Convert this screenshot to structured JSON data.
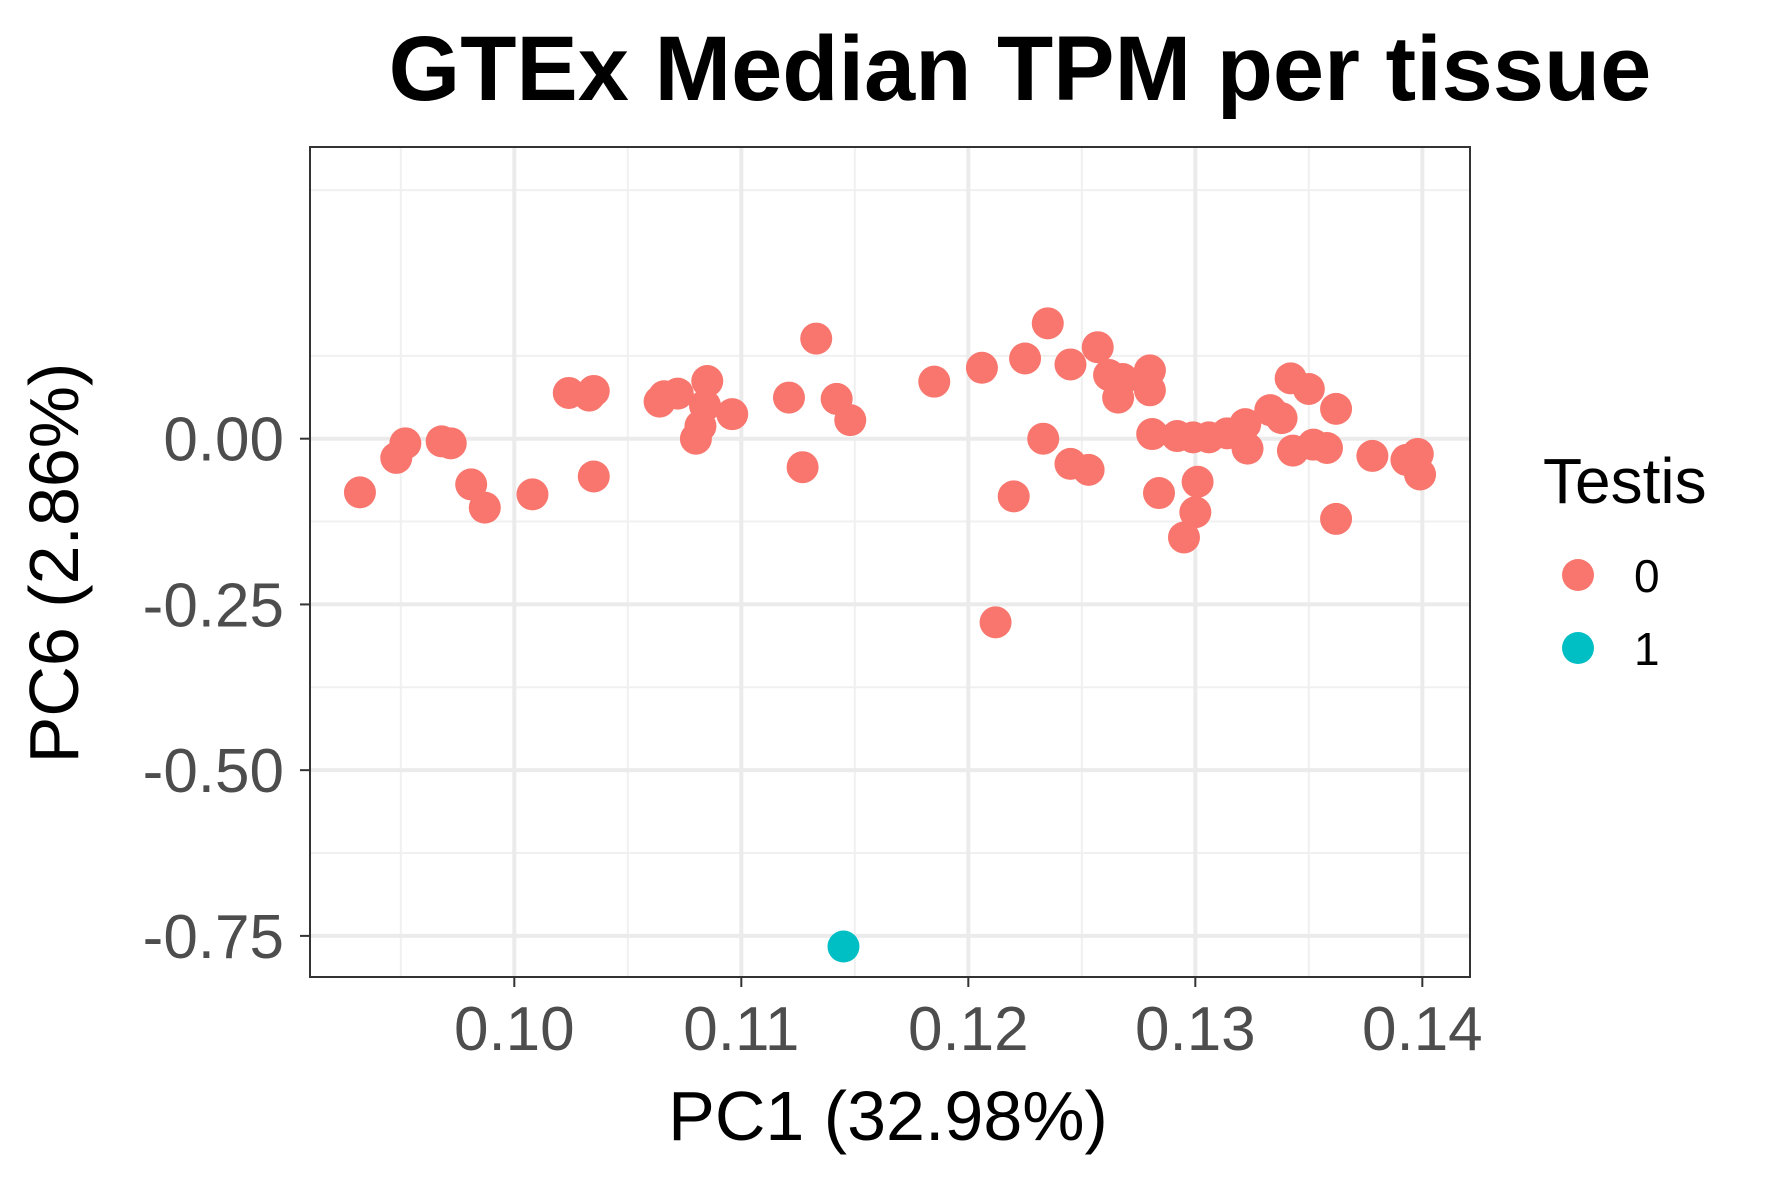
{
  "chart_data": {
    "type": "scatter",
    "title": "GTEx Median TPM per tissue",
    "xlabel": "PC1 (32.98%)",
    "ylabel": "PC6 (2.86%)",
    "xlim": [
      0.091,
      0.1421
    ],
    "ylim": [
      -0.812,
      0.44
    ],
    "x_ticks": [
      0.1,
      0.11,
      0.12,
      0.13,
      0.14
    ],
    "x_tick_labels": [
      "0.10",
      "0.11",
      "0.12",
      "0.13",
      "0.14"
    ],
    "y_ticks": [
      0.0,
      -0.25,
      -0.5,
      -0.75
    ],
    "y_tick_labels": [
      "0.00",
      "-0.25",
      "-0.50",
      "-0.75"
    ],
    "grid": true,
    "legend": {
      "title": "Testis",
      "position": "right",
      "entries": [
        {
          "label": "0",
          "color": "#f8766d"
        },
        {
          "label": "1",
          "color": "#00bfc4"
        }
      ]
    },
    "series": [
      {
        "group": "0",
        "color": "#f8766d",
        "points": [
          [
            0.0932,
            -0.081
          ],
          [
            0.0948,
            -0.029
          ],
          [
            0.0952,
            -0.007
          ],
          [
            0.0968,
            -0.004
          ],
          [
            0.0972,
            -0.007
          ],
          [
            0.0981,
            -0.069
          ],
          [
            0.0987,
            -0.104
          ],
          [
            0.1008,
            -0.084
          ],
          [
            0.1024,
            0.069
          ],
          [
            0.1033,
            0.065
          ],
          [
            0.1035,
            0.072
          ],
          [
            0.1035,
            -0.057
          ],
          [
            0.1064,
            0.056
          ],
          [
            0.1066,
            0.064
          ],
          [
            0.1072,
            0.068
          ],
          [
            0.108,
            0.0
          ],
          [
            0.1082,
            0.019
          ],
          [
            0.1084,
            0.05
          ],
          [
            0.1085,
            0.087
          ],
          [
            0.1096,
            0.037
          ],
          [
            0.1121,
            0.062
          ],
          [
            0.1127,
            -0.043
          ],
          [
            0.1133,
            0.151
          ],
          [
            0.1142,
            0.06
          ],
          [
            0.1148,
            0.028
          ],
          [
            0.1185,
            0.086
          ],
          [
            0.1206,
            0.107
          ],
          [
            0.1212,
            -0.277
          ],
          [
            0.122,
            -0.087
          ],
          [
            0.1225,
            0.121
          ],
          [
            0.1233,
            0.0
          ],
          [
            0.1235,
            0.174
          ],
          [
            0.1245,
            0.112
          ],
          [
            0.1245,
            -0.038
          ],
          [
            0.1253,
            -0.047
          ],
          [
            0.1257,
            0.138
          ],
          [
            0.1262,
            0.096
          ],
          [
            0.1266,
            0.062
          ],
          [
            0.1268,
            0.09
          ],
          [
            0.128,
            0.103
          ],
          [
            0.128,
            0.073
          ],
          [
            0.1281,
            0.007
          ],
          [
            0.1284,
            -0.082
          ],
          [
            0.1292,
            0.004
          ],
          [
            0.1295,
            -0.149
          ],
          [
            0.1299,
            0.002
          ],
          [
            0.13,
            -0.111
          ],
          [
            0.1301,
            -0.065
          ],
          [
            0.1306,
            0.002
          ],
          [
            0.1314,
            0.008
          ],
          [
            0.1322,
            0.022
          ],
          [
            0.1323,
            -0.015
          ],
          [
            0.1333,
            0.043
          ],
          [
            0.1338,
            0.031
          ],
          [
            0.1342,
            0.091
          ],
          [
            0.1343,
            -0.018
          ],
          [
            0.135,
            0.075
          ],
          [
            0.1352,
            -0.009
          ],
          [
            0.1358,
            -0.014
          ],
          [
            0.1362,
            0.045
          ],
          [
            0.1362,
            -0.121
          ],
          [
            0.1378,
            -0.026
          ],
          [
            0.1393,
            -0.032
          ],
          [
            0.1398,
            -0.023
          ],
          [
            0.1399,
            -0.054
          ]
        ]
      },
      {
        "group": "1",
        "color": "#00bfc4",
        "points": [
          [
            0.1145,
            -0.766
          ]
        ]
      }
    ]
  }
}
